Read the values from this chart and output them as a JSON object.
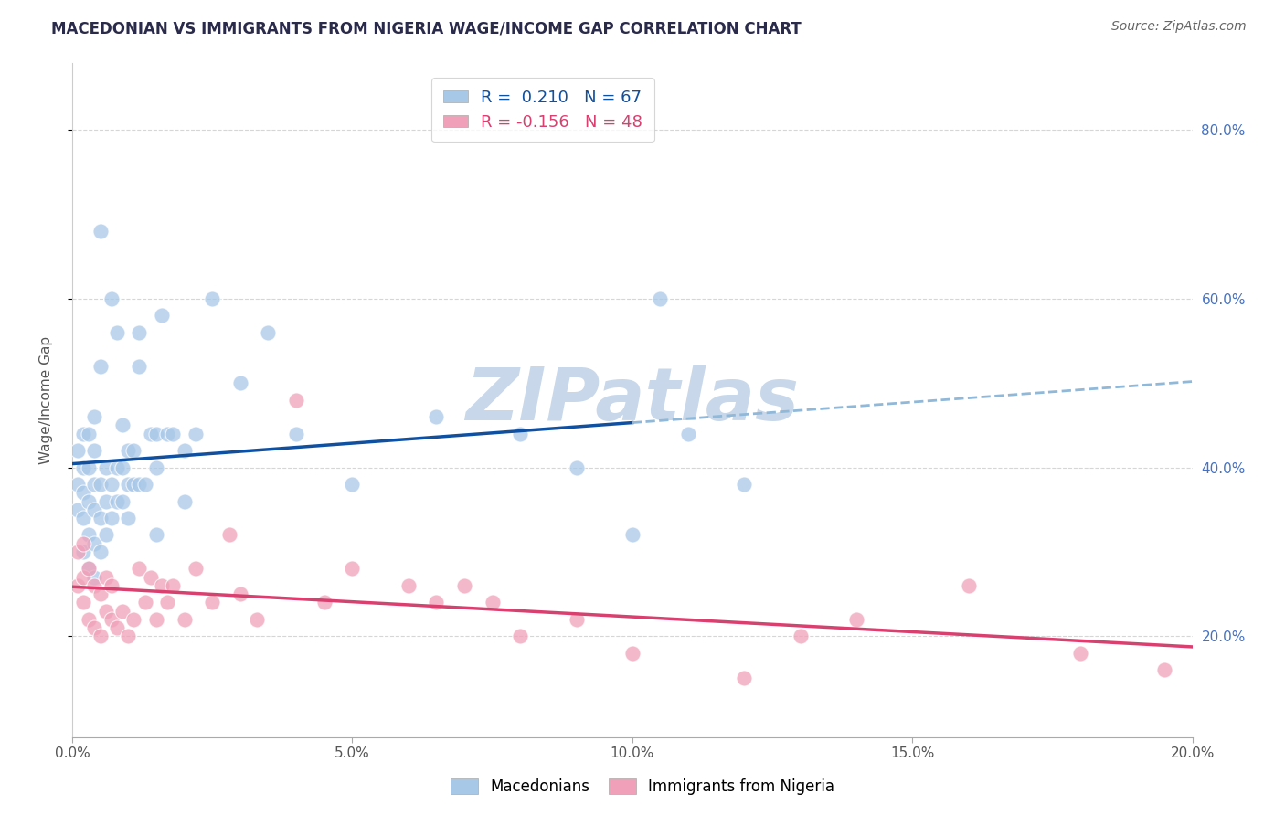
{
  "title": "MACEDONIAN VS IMMIGRANTS FROM NIGERIA WAGE/INCOME GAP CORRELATION CHART",
  "source": "Source: ZipAtlas.com",
  "ylabel": "Wage/Income Gap",
  "xlim": [
    0.0,
    0.2
  ],
  "ylim": [
    0.08,
    0.88
  ],
  "ytick_labels": [
    "20.0%",
    "40.0%",
    "60.0%",
    "80.0%"
  ],
  "ytick_values": [
    0.2,
    0.4,
    0.6,
    0.8
  ],
  "xtick_labels": [
    "0.0%",
    "",
    "5.0%",
    "",
    "10.0%",
    "",
    "15.0%",
    "",
    "20.0%"
  ],
  "xtick_values": [
    0.0,
    0.025,
    0.05,
    0.075,
    0.1,
    0.125,
    0.15,
    0.175,
    0.2
  ],
  "blue_R": 0.21,
  "blue_N": 67,
  "pink_R": -0.156,
  "pink_N": 48,
  "blue_color": "#a8c8e8",
  "pink_color": "#f0a0b8",
  "blue_line_color": "#1050a0",
  "pink_line_color": "#d84070",
  "blue_dash_color": "#90b8d8",
  "watermark_color": "#c8d8ea",
  "blue_points_x": [
    0.001,
    0.001,
    0.001,
    0.002,
    0.002,
    0.002,
    0.002,
    0.002,
    0.003,
    0.003,
    0.003,
    0.003,
    0.003,
    0.004,
    0.004,
    0.004,
    0.004,
    0.004,
    0.004,
    0.005,
    0.005,
    0.005,
    0.005,
    0.006,
    0.006,
    0.006,
    0.007,
    0.007,
    0.007,
    0.008,
    0.008,
    0.009,
    0.009,
    0.009,
    0.01,
    0.01,
    0.01,
    0.011,
    0.011,
    0.012,
    0.012,
    0.013,
    0.014,
    0.015,
    0.015,
    0.016,
    0.017,
    0.018,
    0.02,
    0.022,
    0.025,
    0.03,
    0.035,
    0.04,
    0.05,
    0.065,
    0.08,
    0.09,
    0.1,
    0.105,
    0.11,
    0.12,
    0.005,
    0.008,
    0.012,
    0.015,
    0.02
  ],
  "blue_points_y": [
    0.35,
    0.38,
    0.42,
    0.3,
    0.34,
    0.37,
    0.4,
    0.44,
    0.28,
    0.32,
    0.36,
    0.4,
    0.44,
    0.27,
    0.31,
    0.35,
    0.38,
    0.42,
    0.46,
    0.3,
    0.34,
    0.38,
    0.52,
    0.32,
    0.36,
    0.4,
    0.34,
    0.38,
    0.6,
    0.36,
    0.4,
    0.36,
    0.4,
    0.45,
    0.34,
    0.38,
    0.42,
    0.38,
    0.42,
    0.38,
    0.56,
    0.38,
    0.44,
    0.4,
    0.44,
    0.58,
    0.44,
    0.44,
    0.42,
    0.44,
    0.6,
    0.5,
    0.56,
    0.44,
    0.38,
    0.46,
    0.44,
    0.4,
    0.32,
    0.6,
    0.44,
    0.38,
    0.68,
    0.56,
    0.52,
    0.32,
    0.36
  ],
  "pink_points_x": [
    0.001,
    0.001,
    0.002,
    0.002,
    0.002,
    0.003,
    0.003,
    0.004,
    0.004,
    0.005,
    0.005,
    0.006,
    0.006,
    0.007,
    0.007,
    0.008,
    0.009,
    0.01,
    0.011,
    0.012,
    0.013,
    0.014,
    0.015,
    0.016,
    0.017,
    0.018,
    0.02,
    0.022,
    0.025,
    0.028,
    0.03,
    0.033,
    0.04,
    0.045,
    0.05,
    0.06,
    0.065,
    0.07,
    0.075,
    0.08,
    0.09,
    0.1,
    0.12,
    0.13,
    0.14,
    0.16,
    0.18,
    0.195
  ],
  "pink_points_y": [
    0.26,
    0.3,
    0.24,
    0.27,
    0.31,
    0.22,
    0.28,
    0.21,
    0.26,
    0.2,
    0.25,
    0.23,
    0.27,
    0.22,
    0.26,
    0.21,
    0.23,
    0.2,
    0.22,
    0.28,
    0.24,
    0.27,
    0.22,
    0.26,
    0.24,
    0.26,
    0.22,
    0.28,
    0.24,
    0.32,
    0.25,
    0.22,
    0.48,
    0.24,
    0.28,
    0.26,
    0.24,
    0.26,
    0.24,
    0.2,
    0.22,
    0.18,
    0.15,
    0.2,
    0.22,
    0.26,
    0.18,
    0.16
  ]
}
